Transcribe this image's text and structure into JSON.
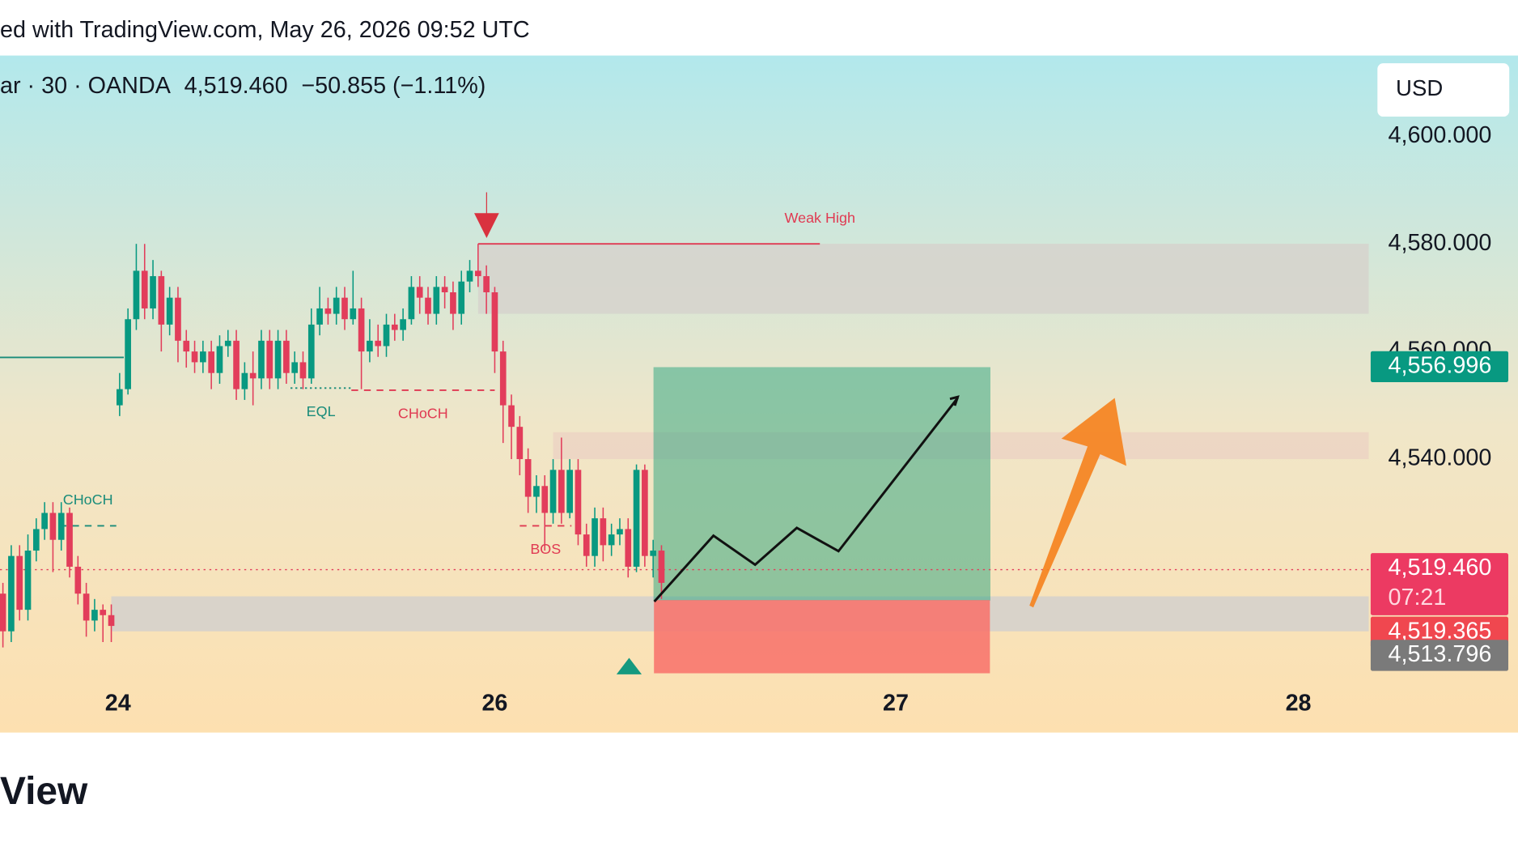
{
  "header": "ed with TradingView.com, May 26, 2026 09:52 UTC",
  "footer": "View",
  "chart_data": {
    "type": "candlestick",
    "legend_text": "ar · 30 · OANDA",
    "last": "4,519.460",
    "change": "−50.855 (−1.11%)",
    "currency": "USD",
    "open": [
      4515,
      4508,
      4522,
      4512,
      4523,
      4527,
      4530,
      4525,
      4530,
      4520,
      4515,
      4510,
      4512,
      4511,
      4550,
      4553,
      4566,
      4575,
      4568,
      4574,
      4565,
      4570,
      4562,
      4560,
      4558,
      4560,
      4556,
      4561,
      4562,
      4553,
      4556,
      4555,
      4562,
      4555,
      4562,
      4556,
      4558,
      4555,
      4565,
      4568,
      4567,
      4570,
      4566,
      4568,
      4560,
      4562,
      4561,
      4565,
      4564,
      4566,
      4572,
      4570,
      4567,
      4572,
      4571,
      4567,
      4573,
      4575,
      4574,
      4571,
      4560,
      4550,
      4546,
      4540,
      4533,
      4535,
      4530,
      4538,
      4530,
      4538,
      4526,
      4522,
      4529,
      4524,
      4526,
      4527,
      4520,
      4538,
      4522,
      4523
    ],
    "high": [
      4517,
      4524,
      4524,
      4526,
      4529,
      4532,
      4532,
      4532,
      4531,
      4522,
      4517,
      4514,
      4513,
      4513,
      4556,
      4568,
      4580,
      4580,
      4577,
      4575,
      4572,
      4572,
      4564,
      4562,
      4562,
      4562,
      4563,
      4564,
      4564,
      4558,
      4560,
      4564,
      4564,
      4564,
      4564,
      4560,
      4560,
      4568,
      4572,
      4570,
      4572,
      4572,
      4575,
      4570,
      4566,
      4565,
      4567,
      4567,
      4568,
      4574,
      4574,
      4572,
      4574,
      4574,
      4573,
      4575,
      4577,
      4580,
      4576,
      4572,
      4562,
      4552,
      4548,
      4542,
      4537,
      4537,
      4540,
      4544,
      4540,
      4540,
      4528,
      4531,
      4531,
      4528,
      4529,
      4529,
      4539,
      4539,
      4525,
      4524
    ],
    "low": [
      4505,
      4506,
      4510,
      4510,
      4521,
      4525,
      4519,
      4523,
      4518,
      4513,
      4507,
      4508,
      4506,
      4506,
      4548,
      4552,
      4564,
      4566,
      4566,
      4560,
      4563,
      4558,
      4557,
      4556,
      4556,
      4553,
      4554,
      4559,
      4551,
      4551,
      4550,
      4553,
      4553,
      4553,
      4554,
      4554,
      4553,
      4554,
      4563,
      4565,
      4565,
      4564,
      4565,
      4553,
      4558,
      4559,
      4559,
      4562,
      4562,
      4565,
      4567,
      4565,
      4565,
      4568,
      4564,
      4565,
      4571,
      4572,
      4567,
      4556,
      4543,
      4540,
      4537,
      4530,
      4530,
      4523,
      4528,
      4528,
      4529,
      4524,
      4520,
      4520,
      4521,
      4522,
      4524,
      4518,
      4519,
      4520,
      4518,
      4514
    ],
    "close": [
      4508,
      4522,
      4512,
      4523,
      4527,
      4530,
      4525,
      4530,
      4520,
      4515,
      4510,
      4512,
      4511,
      4509,
      4553,
      4566,
      4575,
      4568,
      4574,
      4565,
      4570,
      4562,
      4560,
      4558,
      4560,
      4556,
      4561,
      4562,
      4553,
      4556,
      4555,
      4562,
      4555,
      4562,
      4556,
      4558,
      4555,
      4565,
      4568,
      4567,
      4570,
      4566,
      4568,
      4560,
      4562,
      4561,
      4565,
      4564,
      4566,
      4572,
      4570,
      4567,
      4572,
      4571,
      4567,
      4573,
      4575,
      4574,
      4571,
      4560,
      4550,
      4546,
      4540,
      4533,
      4535,
      4530,
      4538,
      4530,
      4538,
      4526,
      4522,
      4529,
      4524,
      4526,
      4527,
      4520,
      4538,
      4522,
      4523,
      4517
    ],
    "up_color": "#089981",
    "down_color": "#e23d5b",
    "ylim": [
      4500,
      4615
    ],
    "yticks": [
      {
        "value": 4600,
        "label": "4,600.000"
      },
      {
        "value": 4580,
        "label": "4,580.000"
      },
      {
        "value": 4560,
        "label": "4,560.000"
      },
      {
        "value": 4540,
        "label": "4,540.000"
      }
    ],
    "xlim": [
      -0.35,
      163.84
    ],
    "xticks": [
      {
        "value": 13.8,
        "label": "24"
      },
      {
        "value": 59,
        "label": "26"
      },
      {
        "value": 107.1,
        "label": "27"
      },
      {
        "value": 155.4,
        "label": "28"
      }
    ],
    "zones": [
      {
        "from": 4567,
        "to": 4580,
        "x0": 57,
        "x1": 163.84,
        "color": "#d6d2cc"
      },
      {
        "from": 4540,
        "to": 4545,
        "x0": 66,
        "x1": 163.84,
        "color": "#ecd3c3"
      },
      {
        "from": 4508,
        "to": 4514.5,
        "x0": 13,
        "x1": 163.84,
        "color": "#d4d0cc"
      }
    ],
    "levels": [
      {
        "name": "Weak High",
        "value": 4580,
        "x0": 57,
        "x1": 98,
        "color": "#e03a52",
        "dash": "solid",
        "label_pos": "above"
      },
      {
        "value": 4558.9,
        "x0": -0.35,
        "x1": 14.5,
        "color": "#1a8c7a",
        "dash": "solid"
      },
      {
        "name": "EQL",
        "value": 4553.2,
        "x0": 34.5,
        "x1": 41.8,
        "color": "#1a8c7a",
        "dash": "dotted",
        "label_pos": "below"
      },
      {
        "name": "CHoCH",
        "value": 4552.8,
        "x0": 41.8,
        "x1": 59,
        "color": "#e03a52",
        "dash": "dashed",
        "label_pos": "below"
      },
      {
        "name": "CHoCH",
        "value": 4527.6,
        "x0": 6.8,
        "x1": 13.6,
        "color": "#1a8c7a",
        "dash": "dashed",
        "label_pos": "above"
      },
      {
        "name": "BOS",
        "value": 4527.6,
        "x0": 62,
        "x1": 68.2,
        "color": "#e03a52",
        "dash": "dashed",
        "label_pos": "below"
      }
    ],
    "position": {
      "target": 4556.996,
      "entry": 4513.796,
      "stop": 4500.2,
      "x0": 78.1,
      "x1": 118.4
    },
    "price_labels": [
      {
        "value": 4556.996,
        "label": "4,556.996",
        "color": "#089981"
      },
      {
        "value": 4519.46,
        "label": "4,519.460",
        "sub": "07:21",
        "color": "#ec3a62"
      },
      {
        "value": 4519.365,
        "label": "4,519.365",
        "color": "#f0474f"
      },
      {
        "value": 4513.796,
        "label": "4,513.796",
        "color": "#7a7a7a"
      }
    ]
  }
}
